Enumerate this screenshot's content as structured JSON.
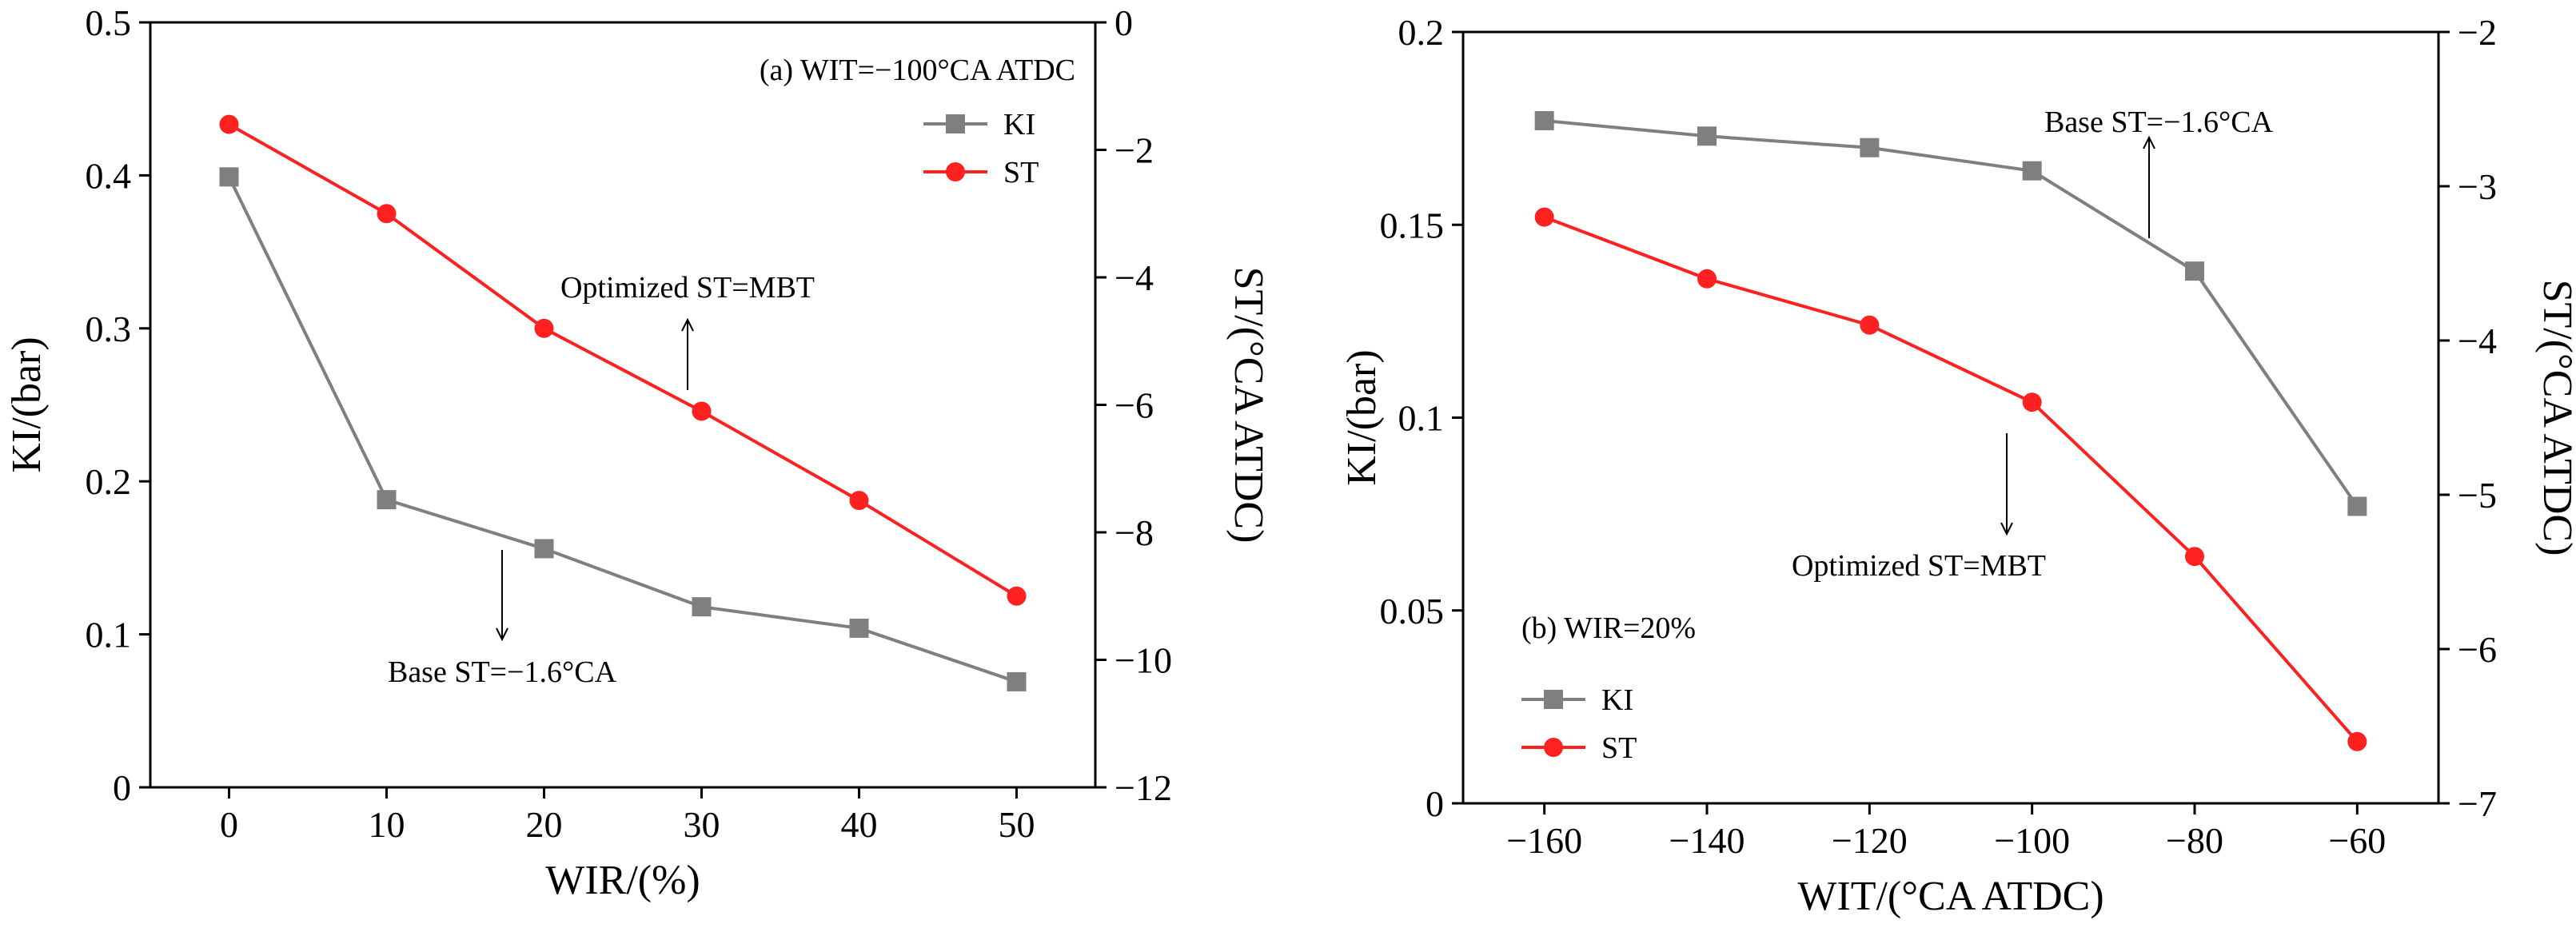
{
  "chart_data": [
    {
      "type": "line",
      "panel": "a",
      "x": [
        0,
        10,
        20,
        30,
        40,
        50
      ],
      "xlabel": "WIR/(%)",
      "ylabel": "KI/(bar)",
      "y2label": "ST/(°CA ATDC)",
      "xlim": [
        -5,
        55
      ],
      "ylim": [
        0,
        0.5
      ],
      "y2lim": [
        -12,
        0
      ],
      "xticks": [
        0,
        10,
        20,
        30,
        40,
        50
      ],
      "yticks": [
        0,
        0.1,
        0.2,
        0.3,
        0.4,
        0.5
      ],
      "y2ticks": [
        0,
        -2,
        -4,
        -6,
        -8,
        -10,
        -12
      ],
      "series": [
        {
          "name": "KI",
          "axis": "left",
          "color": "#7f7f7f",
          "marker": "square",
          "values": [
            0.399,
            0.188,
            0.156,
            0.118,
            0.104,
            0.069
          ]
        },
        {
          "name": "ST",
          "axis": "right",
          "color": "#ff2020",
          "marker": "circle",
          "values": [
            -1.6,
            -3.0,
            -4.8,
            -6.1,
            -7.5,
            -9.0
          ]
        }
      ],
      "legend_position": "top-right",
      "annotations": [
        {
          "text": "(a) WIT=−100°CA ATDC"
        },
        {
          "text": "Optimized ST=MBT",
          "arrow": "up"
        },
        {
          "text": "Base ST=−1.6°CA",
          "arrow": "down"
        }
      ]
    },
    {
      "type": "line",
      "panel": "b",
      "x": [
        -160,
        -140,
        -120,
        -100,
        -80,
        -60
      ],
      "xlabel": "WIT/(°CA ATDC)",
      "ylabel": "KI/(bar)",
      "y2label": "ST/(°CA ATDC)",
      "xlim": [
        -170,
        -50
      ],
      "ylim": [
        0,
        0.2
      ],
      "y2lim": [
        -7,
        -2
      ],
      "xticks": [
        -160,
        -140,
        -120,
        -100,
        -80,
        -60
      ],
      "yticks": [
        0,
        0.05,
        0.1,
        0.15,
        0.2
      ],
      "y2ticks": [
        -2,
        -3,
        -4,
        -5,
        -6,
        -7
      ],
      "series": [
        {
          "name": "KI",
          "axis": "left",
          "color": "#7f7f7f",
          "marker": "square",
          "values": [
            0.177,
            0.173,
            0.17,
            0.164,
            0.138,
            0.077
          ]
        },
        {
          "name": "ST",
          "axis": "right",
          "color": "#ff2020",
          "marker": "circle",
          "values": [
            -3.2,
            -3.6,
            -3.9,
            -4.4,
            -5.4,
            -6.6
          ]
        }
      ],
      "legend_position": "bottom-left",
      "annotations": [
        {
          "text": "(b) WIR=20%"
        },
        {
          "text": "Optimized ST=MBT",
          "arrow": "down"
        },
        {
          "text": "Base ST=−1.6°CA",
          "arrow": "up"
        }
      ]
    }
  ]
}
